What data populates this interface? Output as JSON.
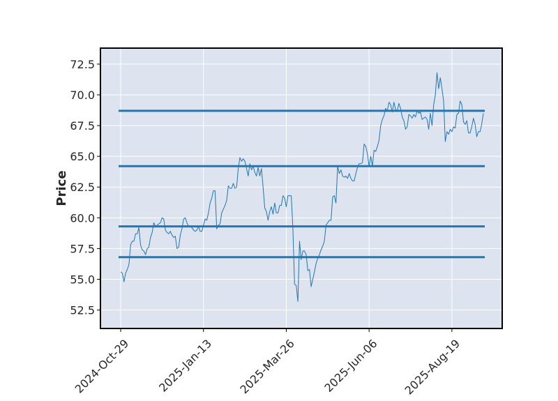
{
  "chart_data": {
    "type": "line",
    "title": "",
    "xlabel": "",
    "ylabel": "Price",
    "ylim": [
      51.0,
      73.8
    ],
    "y_ticks": [
      52.5,
      55.0,
      57.5,
      60.0,
      62.5,
      65.0,
      67.5,
      70.0,
      72.5
    ],
    "y_tick_labels": [
      "52.5",
      "55.0",
      "57.5",
      "60.0",
      "62.5",
      "65.0",
      "67.5",
      "70.0",
      "72.5"
    ],
    "x_tick_labels": [
      "2024-Oct-29",
      "2025-Jan-13",
      "2025-Mar-26",
      "2025-Jun-06",
      "2025-Aug-19"
    ],
    "x_tick_index": [
      0,
      50,
      100,
      150,
      200
    ],
    "grid": true,
    "colors": {
      "background": "#dde3ef",
      "grid": "#ffffff",
      "line": "#1f77b4",
      "frame": "#000000"
    },
    "series": [
      {
        "values": [
          55.6,
          55.5,
          54.8,
          55.5,
          55.8,
          56.2,
          57.8,
          58.1,
          58.1,
          58.7,
          58.7,
          59.2,
          57.8,
          57.4,
          57.3,
          57.0,
          57.5,
          57.6,
          58.4,
          58.8,
          59.6,
          59.3,
          59.4,
          59.5,
          59.6,
          60.0,
          59.9,
          59.0,
          58.8,
          58.7,
          58.9,
          58.6,
          58.4,
          58.5,
          57.5,
          57.6,
          58.6,
          59.1,
          59.9,
          60.0,
          59.6,
          59.3,
          59.3,
          59.2,
          59.0,
          58.9,
          59.0,
          59.3,
          58.9,
          58.9,
          59.4,
          59.9,
          59.8,
          60.4,
          61.2,
          61.6,
          62.2,
          62.2,
          59.1,
          59.4,
          59.5,
          60.4,
          60.7,
          61.0,
          61.4,
          62.6,
          62.4,
          62.4,
          62.8,
          62.4,
          62.5,
          64.0,
          64.9,
          64.6,
          64.8,
          64.6,
          64.0,
          63.4,
          64.4,
          63.9,
          64.2,
          63.7,
          63.4,
          64.1,
          63.4,
          64.0,
          62.5,
          60.8,
          60.5,
          59.8,
          60.5,
          60.9,
          60.3,
          61.2,
          60.4,
          60.4,
          61.0,
          61.0,
          61.8,
          61.6,
          60.9,
          61.8,
          61.8,
          61.8,
          59.1,
          54.6,
          54.5,
          53.2,
          58.1,
          56.6,
          57.3,
          57.3,
          57.0,
          55.7,
          55.8,
          54.4,
          55.0,
          55.6,
          56.3,
          56.7,
          57.0,
          57.4,
          57.7,
          58.1,
          59.4,
          59.6,
          59.8,
          59.8,
          61.7,
          61.8,
          61.2,
          64.2,
          63.6,
          63.9,
          63.4,
          63.3,
          63.4,
          63.2,
          63.6,
          63.2,
          63.0,
          63.0,
          63.6,
          64.1,
          64.4,
          64.4,
          64.5,
          66.0,
          65.8,
          65.2,
          64.2,
          65.0,
          64.2,
          65.5,
          65.4,
          65.8,
          66.3,
          67.5,
          68.0,
          68.3,
          68.9,
          68.7,
          69.4,
          69.2,
          68.6,
          69.4,
          68.8,
          68.7,
          69.3,
          68.9,
          68.2,
          67.9,
          67.2,
          67.4,
          68.4,
          68.3,
          68.1,
          68.4,
          68.2,
          68.7,
          68.5,
          68.6,
          68.0,
          68.1,
          68.2,
          68.0,
          67.2,
          68.5,
          67.5,
          69.2,
          70.0,
          71.8,
          70.5,
          71.4,
          70.5,
          69.5,
          66.2,
          67.0,
          66.8,
          67.2,
          67.0,
          67.4,
          67.3,
          68.4,
          68.5,
          69.5,
          69.2,
          67.8,
          67.6,
          67.9,
          66.9,
          66.9,
          67.4,
          68.1,
          67.6,
          66.6,
          67.0,
          67.0,
          67.6,
          68.5
        ]
      }
    ],
    "hlines": [
      68.7,
      64.2,
      59.3,
      56.8
    ]
  }
}
